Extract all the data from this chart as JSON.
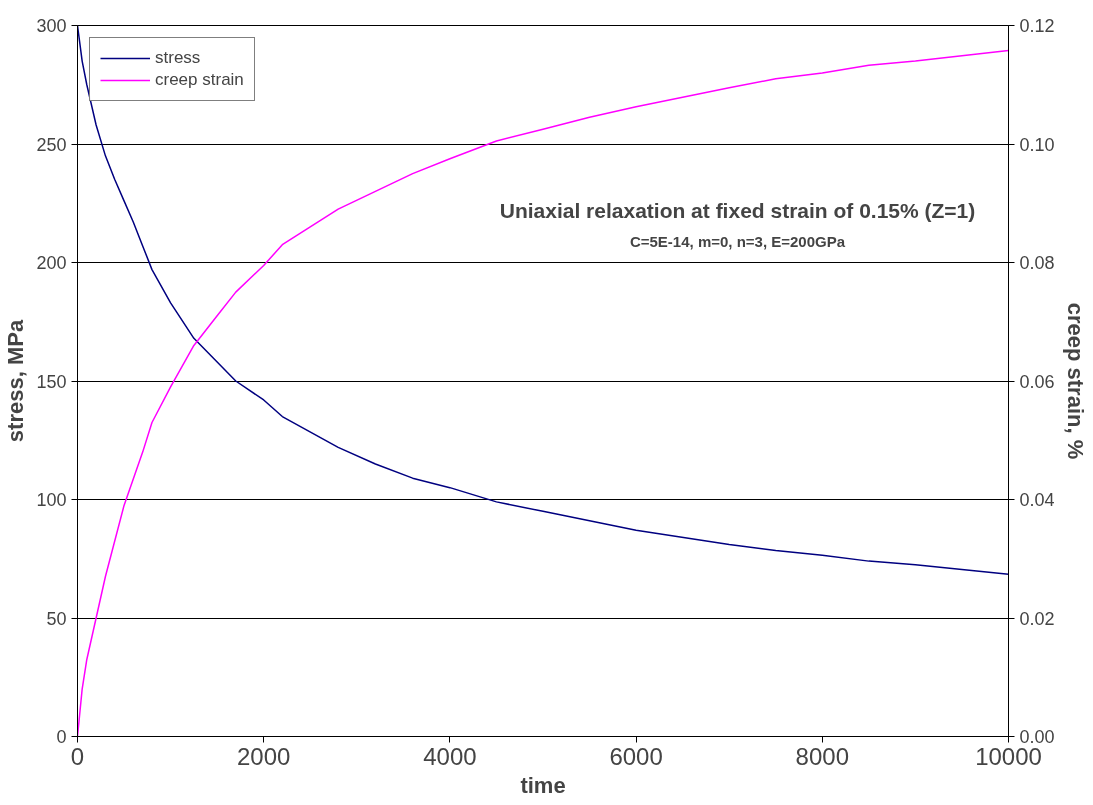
{
  "chart_data": {
    "type": "line",
    "xlabel": "time",
    "ylabel": "stress, MPa",
    "y2label": "creep strain, %",
    "annotations": [
      "Uniaxial relaxation at fixed strain of 0.15% (Z=1)",
      "C=5E-14, m=0, n=3, E=200GPa"
    ],
    "xlim": [
      0,
      10000
    ],
    "xticks": [
      0,
      2000,
      4000,
      6000,
      8000,
      10000
    ],
    "ylim": [
      0,
      300
    ],
    "yticks": [
      0,
      50,
      100,
      150,
      200,
      250,
      300
    ],
    "y2lim": [
      0,
      0.12
    ],
    "y2ticks": [
      {
        "value": 0,
        "label": "0.00"
      },
      {
        "value": 0.02,
        "label": "0.02"
      },
      {
        "value": 0.04,
        "label": "0.04"
      },
      {
        "value": 0.06,
        "label": "0.06"
      },
      {
        "value": 0.08,
        "label": "0.08"
      },
      {
        "value": 0.1,
        "label": "0.10"
      },
      {
        "value": 0.12,
        "label": "0.12"
      }
    ],
    "grid": "y",
    "legend": "top left",
    "marker": "none",
    "line_style": "solid",
    "series": [
      {
        "name": "stress",
        "color": "#000080",
        "x": [
          0,
          50,
          100,
          200,
          300,
          400,
          500,
          600,
          700,
          800,
          1000,
          1250,
          1700,
          2000,
          2200,
          2800,
          3200,
          3600,
          4000,
          4500,
          5000,
          6000,
          7000,
          7500,
          8000,
          8500,
          9000,
          10000
        ],
        "values": [
          300,
          285,
          275,
          258,
          245,
          235,
          226,
          217,
          207,
          197,
          183,
          168,
          150,
          142,
          135,
          122,
          115,
          109,
          105,
          99,
          95,
          87,
          81,
          78.5,
          76.5,
          74,
          72.5,
          68.5
        ]
      },
      {
        "name": "creep strain",
        "color": "#ff00ff",
        "axis": "y2",
        "x": [
          0,
          50,
          100,
          200,
          300,
          500,
          700,
          800,
          1000,
          1250,
          1500,
          1700,
          2000,
          2200,
          2500,
          2800,
          3200,
          3600,
          4000,
          4500,
          5000,
          5500,
          6000,
          7000,
          7500,
          8000,
          8500,
          9000,
          10000
        ],
        "values": [
          0,
          0.008,
          0.013,
          0.02,
          0.027,
          0.039,
          0.048,
          0.053,
          0.059,
          0.066,
          0.071,
          0.075,
          0.0795,
          0.083,
          0.086,
          0.089,
          0.092,
          0.095,
          0.0975,
          0.1005,
          0.1025,
          0.1045,
          0.1063,
          0.1095,
          0.111,
          0.112,
          0.1133,
          0.114,
          0.1158
        ]
      }
    ]
  }
}
